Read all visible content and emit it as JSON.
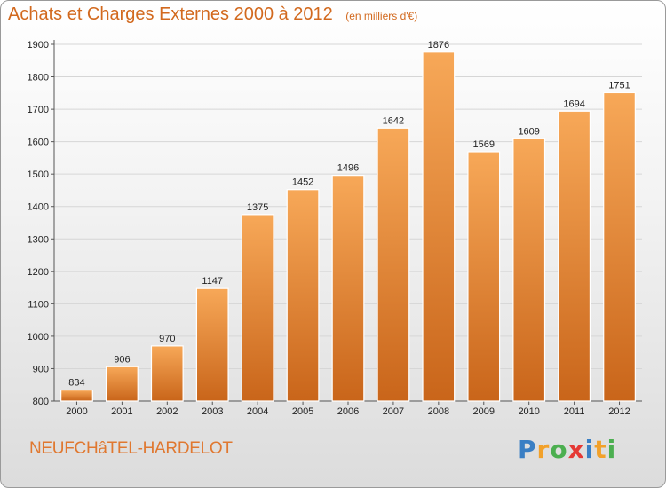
{
  "chart_data": {
    "type": "bar",
    "title": "Achats et Charges Externes 2000 à 2012",
    "subtitle": "(en milliers d'€)",
    "xlabel": "",
    "ylabel": "",
    "categories": [
      "2000",
      "2001",
      "2002",
      "2003",
      "2004",
      "2005",
      "2006",
      "2007",
      "2008",
      "2009",
      "2010",
      "2011",
      "2012"
    ],
    "values": [
      834,
      906,
      970,
      1147,
      1375,
      1452,
      1496,
      1642,
      1876,
      1569,
      1609,
      1694,
      1751
    ],
    "ylim": [
      800,
      1900
    ],
    "yticks": [
      800,
      900,
      1000,
      1100,
      1200,
      1300,
      1400,
      1500,
      1600,
      1700,
      1800,
      1900
    ],
    "grid": true,
    "bar_color": "#f0963e"
  },
  "footer": {
    "location": "NEUFCHâTEL-HARDELOT",
    "logo_letters": [
      {
        "char": "P",
        "color": "#3a7fc4"
      },
      {
        "char": "r",
        "color": "#f2a12a"
      },
      {
        "char": "o",
        "color": "#4caf50"
      },
      {
        "char": "x",
        "color": "#e53935"
      },
      {
        "char": "i",
        "color": "#3a7fc4"
      },
      {
        "char": "t",
        "color": "#f2a12a"
      },
      {
        "char": "i",
        "color": "#4caf50"
      }
    ]
  }
}
